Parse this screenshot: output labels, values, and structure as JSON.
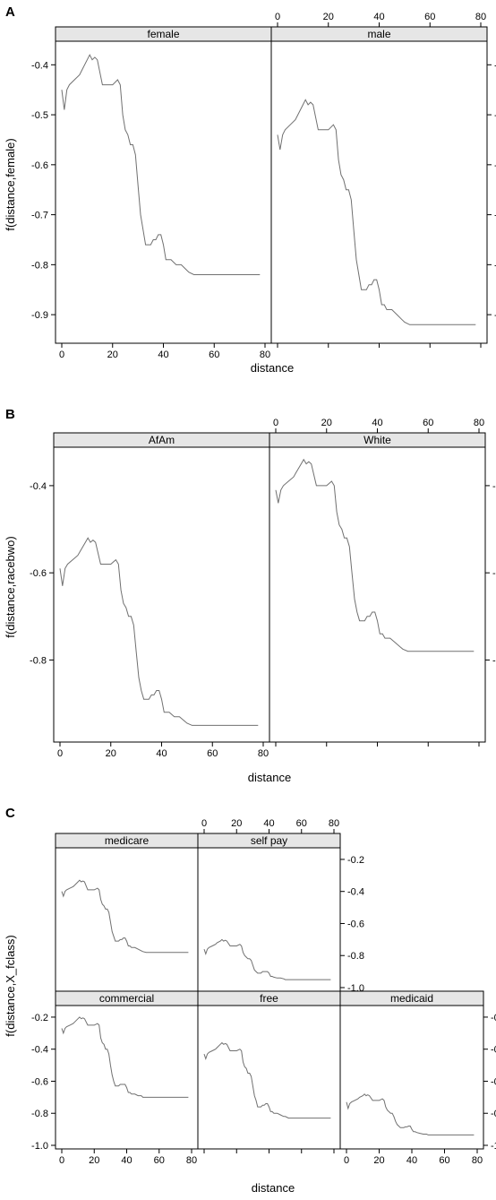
{
  "figure": {
    "background": "#ffffff",
    "strip_color": "#e6e6e6",
    "line_color": "#707070",
    "frame_color": "#000000"
  },
  "chart_data": [
    {
      "type": "line",
      "panel_label": "A",
      "xlabel": "distance",
      "ylabel": "f(distance,female)",
      "xlim": [
        0,
        80
      ],
      "ylim": [
        -0.95,
        -0.36
      ],
      "xticks": [
        0,
        20,
        40,
        60,
        80
      ],
      "yticks": [
        -0.4,
        -0.5,
        -0.6,
        -0.7,
        -0.8,
        -0.9
      ],
      "facets": [
        {
          "name": "female",
          "x": [
            0,
            1,
            2,
            3,
            5,
            7,
            8,
            10,
            11,
            12,
            13,
            14,
            16,
            18,
            20,
            22,
            23,
            24,
            25,
            26,
            27,
            28,
            29,
            30,
            31,
            32,
            33,
            34,
            35,
            36,
            37,
            38,
            39,
            40,
            41,
            42,
            43,
            45,
            47,
            49,
            50,
            52,
            55,
            60,
            70,
            78
          ],
          "y": [
            -0.45,
            -0.49,
            -0.45,
            -0.44,
            -0.43,
            -0.42,
            -0.41,
            -0.39,
            -0.38,
            -0.39,
            -0.385,
            -0.39,
            -0.44,
            -0.44,
            -0.44,
            -0.43,
            -0.44,
            -0.5,
            -0.53,
            -0.54,
            -0.56,
            -0.56,
            -0.58,
            -0.64,
            -0.7,
            -0.73,
            -0.76,
            -0.76,
            -0.76,
            -0.75,
            -0.75,
            -0.74,
            -0.74,
            -0.76,
            -0.79,
            -0.79,
            -0.79,
            -0.8,
            -0.8,
            -0.81,
            -0.815,
            -0.82,
            -0.82,
            -0.82,
            -0.82,
            -0.82
          ]
        },
        {
          "name": "male",
          "x": [
            0,
            1,
            2,
            3,
            5,
            7,
            8,
            10,
            11,
            12,
            13,
            14,
            16,
            18,
            20,
            22,
            23,
            24,
            25,
            26,
            27,
            28,
            29,
            30,
            31,
            32,
            33,
            34,
            35,
            36,
            37,
            38,
            39,
            40,
            41,
            42,
            43,
            45,
            47,
            49,
            50,
            52,
            55,
            60,
            70,
            78
          ],
          "y": [
            -0.54,
            -0.57,
            -0.54,
            -0.53,
            -0.52,
            -0.51,
            -0.5,
            -0.48,
            -0.47,
            -0.48,
            -0.475,
            -0.48,
            -0.53,
            -0.53,
            -0.53,
            -0.52,
            -0.53,
            -0.59,
            -0.62,
            -0.63,
            -0.65,
            -0.65,
            -0.67,
            -0.73,
            -0.79,
            -0.82,
            -0.85,
            -0.85,
            -0.85,
            -0.84,
            -0.84,
            -0.83,
            -0.83,
            -0.85,
            -0.88,
            -0.88,
            -0.89,
            -0.89,
            -0.9,
            -0.91,
            -0.915,
            -0.92,
            -0.92,
            -0.92,
            -0.92,
            -0.92
          ]
        }
      ]
    },
    {
      "type": "line",
      "panel_label": "B",
      "xlabel": "distance",
      "ylabel": "f(distance,racebwo)",
      "xlim": [
        0,
        80
      ],
      "ylim": [
        -0.98,
        -0.32
      ],
      "xticks": [
        0,
        20,
        40,
        60,
        80
      ],
      "yticks": [
        -0.4,
        -0.6,
        -0.8
      ],
      "facets": [
        {
          "name": "AfAm",
          "x": [
            0,
            1,
            2,
            3,
            5,
            7,
            8,
            10,
            11,
            12,
            13,
            14,
            16,
            18,
            20,
            22,
            23,
            24,
            25,
            26,
            27,
            28,
            29,
            30,
            31,
            32,
            33,
            34,
            35,
            36,
            37,
            38,
            39,
            40,
            41,
            42,
            43,
            45,
            47,
            49,
            50,
            52,
            55,
            60,
            70,
            78
          ],
          "y": [
            -0.59,
            -0.63,
            -0.59,
            -0.58,
            -0.57,
            -0.56,
            -0.55,
            -0.53,
            -0.52,
            -0.53,
            -0.525,
            -0.53,
            -0.58,
            -0.58,
            -0.58,
            -0.57,
            -0.58,
            -0.64,
            -0.67,
            -0.68,
            -0.7,
            -0.7,
            -0.72,
            -0.78,
            -0.84,
            -0.87,
            -0.89,
            -0.89,
            -0.89,
            -0.88,
            -0.88,
            -0.87,
            -0.87,
            -0.89,
            -0.92,
            -0.92,
            -0.92,
            -0.93,
            -0.93,
            -0.94,
            -0.945,
            -0.95,
            -0.95,
            -0.95,
            -0.95,
            -0.95
          ]
        },
        {
          "name": "White",
          "x": [
            0,
            1,
            2,
            3,
            5,
            7,
            8,
            10,
            11,
            12,
            13,
            14,
            16,
            18,
            20,
            22,
            23,
            24,
            25,
            26,
            27,
            28,
            29,
            30,
            31,
            32,
            33,
            34,
            35,
            36,
            37,
            38,
            39,
            40,
            41,
            42,
            43,
            45,
            47,
            49,
            50,
            52,
            55,
            60,
            70,
            78
          ],
          "y": [
            -0.41,
            -0.44,
            -0.41,
            -0.4,
            -0.39,
            -0.38,
            -0.37,
            -0.35,
            -0.34,
            -0.35,
            -0.345,
            -0.35,
            -0.4,
            -0.4,
            -0.4,
            -0.39,
            -0.4,
            -0.46,
            -0.49,
            -0.5,
            -0.52,
            -0.52,
            -0.54,
            -0.6,
            -0.66,
            -0.69,
            -0.71,
            -0.71,
            -0.71,
            -0.7,
            -0.7,
            -0.69,
            -0.69,
            -0.71,
            -0.74,
            -0.74,
            -0.75,
            -0.75,
            -0.76,
            -0.77,
            -0.775,
            -0.78,
            -0.78,
            -0.78,
            -0.78,
            -0.78
          ]
        }
      ]
    },
    {
      "type": "line",
      "panel_label": "C",
      "xlabel": "distance",
      "ylabel": "f(distance,X_fclass)",
      "xlim": [
        0,
        80
      ],
      "ylim": [
        -1.0,
        -0.15
      ],
      "xticks": [
        0,
        20,
        40,
        60,
        80
      ],
      "yticks": [
        -0.2,
        -0.4,
        -0.6,
        -0.8,
        -1.0
      ],
      "ytick_labels": [
        "-0.2",
        "-0.4",
        "-0.6",
        "-0.8",
        "-1.0"
      ],
      "facets": [
        {
          "name": "medicare",
          "x": [
            0,
            1,
            2,
            3,
            5,
            7,
            8,
            10,
            11,
            12,
            13,
            14,
            16,
            18,
            20,
            22,
            23,
            24,
            25,
            26,
            27,
            28,
            29,
            30,
            31,
            32,
            33,
            34,
            35,
            36,
            37,
            38,
            39,
            40,
            41,
            42,
            43,
            45,
            47,
            49,
            50,
            52,
            55,
            60,
            70,
            78
          ],
          "y": [
            -0.4,
            -0.43,
            -0.4,
            -0.39,
            -0.38,
            -0.37,
            -0.36,
            -0.34,
            -0.33,
            -0.34,
            -0.335,
            -0.34,
            -0.39,
            -0.39,
            -0.39,
            -0.38,
            -0.39,
            -0.45,
            -0.48,
            -0.49,
            -0.51,
            -0.51,
            -0.53,
            -0.59,
            -0.65,
            -0.68,
            -0.71,
            -0.71,
            -0.71,
            -0.7,
            -0.7,
            -0.69,
            -0.69,
            -0.71,
            -0.74,
            -0.74,
            -0.75,
            -0.75,
            -0.76,
            -0.77,
            -0.775,
            -0.78,
            -0.78,
            -0.78,
            -0.78,
            -0.78
          ]
        },
        {
          "name": "self pay",
          "x": [
            0,
            1,
            2,
            3,
            5,
            7,
            8,
            10,
            11,
            12,
            13,
            14,
            16,
            18,
            20,
            22,
            23,
            24,
            25,
            26,
            27,
            28,
            29,
            30,
            31,
            32,
            33,
            34,
            35,
            36,
            37,
            38,
            39,
            40,
            41,
            42,
            43,
            45,
            47,
            49,
            50,
            52,
            55,
            60,
            70,
            78
          ],
          "y": [
            -0.76,
            -0.79,
            -0.76,
            -0.75,
            -0.74,
            -0.73,
            -0.72,
            -0.71,
            -0.7,
            -0.71,
            -0.705,
            -0.71,
            -0.74,
            -0.74,
            -0.74,
            -0.73,
            -0.74,
            -0.78,
            -0.8,
            -0.81,
            -0.82,
            -0.82,
            -0.83,
            -0.86,
            -0.89,
            -0.9,
            -0.91,
            -0.91,
            -0.91,
            -0.9,
            -0.9,
            -0.9,
            -0.9,
            -0.91,
            -0.93,
            -0.93,
            -0.935,
            -0.94,
            -0.94,
            -0.945,
            -0.95,
            -0.95,
            -0.95,
            -0.95,
            -0.95,
            -0.95
          ]
        },
        {
          "name": "commercial",
          "x": [
            0,
            1,
            2,
            3,
            5,
            7,
            8,
            10,
            11,
            12,
            13,
            14,
            16,
            18,
            20,
            22,
            23,
            24,
            25,
            26,
            27,
            28,
            29,
            30,
            31,
            32,
            33,
            34,
            35,
            36,
            37,
            38,
            39,
            40,
            41,
            42,
            43,
            45,
            47,
            49,
            50,
            52,
            55,
            60,
            70,
            78
          ],
          "y": [
            -0.27,
            -0.3,
            -0.27,
            -0.26,
            -0.25,
            -0.24,
            -0.23,
            -0.21,
            -0.2,
            -0.21,
            -0.205,
            -0.21,
            -0.25,
            -0.25,
            -0.25,
            -0.24,
            -0.25,
            -0.33,
            -0.36,
            -0.37,
            -0.4,
            -0.4,
            -0.43,
            -0.5,
            -0.56,
            -0.6,
            -0.63,
            -0.63,
            -0.63,
            -0.62,
            -0.62,
            -0.62,
            -0.62,
            -0.64,
            -0.67,
            -0.67,
            -0.68,
            -0.68,
            -0.69,
            -0.69,
            -0.7,
            -0.7,
            -0.7,
            -0.7,
            -0.7,
            -0.7
          ]
        },
        {
          "name": "free",
          "x": [
            0,
            1,
            2,
            3,
            5,
            7,
            8,
            10,
            11,
            12,
            13,
            14,
            16,
            18,
            20,
            22,
            23,
            24,
            25,
            26,
            27,
            28,
            29,
            30,
            31,
            32,
            33,
            34,
            35,
            36,
            37,
            38,
            39,
            40,
            41,
            42,
            43,
            45,
            47,
            49,
            50,
            52,
            55,
            60,
            70,
            78
          ],
          "y": [
            -0.43,
            -0.46,
            -0.43,
            -0.42,
            -0.41,
            -0.4,
            -0.39,
            -0.37,
            -0.36,
            -0.37,
            -0.365,
            -0.37,
            -0.41,
            -0.41,
            -0.41,
            -0.4,
            -0.41,
            -0.48,
            -0.51,
            -0.52,
            -0.55,
            -0.55,
            -0.57,
            -0.63,
            -0.69,
            -0.72,
            -0.76,
            -0.76,
            -0.76,
            -0.75,
            -0.75,
            -0.74,
            -0.74,
            -0.76,
            -0.79,
            -0.79,
            -0.8,
            -0.8,
            -0.81,
            -0.82,
            -0.82,
            -0.83,
            -0.83,
            -0.83,
            -0.83,
            -0.83
          ]
        },
        {
          "name": "medicaid",
          "x": [
            0,
            1,
            2,
            3,
            5,
            7,
            8,
            10,
            11,
            12,
            13,
            14,
            16,
            18,
            20,
            22,
            23,
            24,
            25,
            26,
            27,
            28,
            29,
            30,
            31,
            32,
            33,
            34,
            35,
            36,
            37,
            38,
            39,
            40,
            41,
            42,
            43,
            45,
            47,
            49,
            50,
            52,
            55,
            60,
            70,
            78
          ],
          "y": [
            -0.73,
            -0.77,
            -0.74,
            -0.73,
            -0.72,
            -0.71,
            -0.7,
            -0.69,
            -0.68,
            -0.69,
            -0.685,
            -0.69,
            -0.72,
            -0.72,
            -0.72,
            -0.71,
            -0.72,
            -0.76,
            -0.78,
            -0.79,
            -0.8,
            -0.8,
            -0.82,
            -0.85,
            -0.87,
            -0.88,
            -0.89,
            -0.89,
            -0.89,
            -0.885,
            -0.885,
            -0.88,
            -0.88,
            -0.9,
            -0.915,
            -0.915,
            -0.92,
            -0.925,
            -0.93,
            -0.93,
            -0.935,
            -0.935,
            -0.935,
            -0.935,
            -0.935,
            -0.935
          ]
        }
      ]
    }
  ]
}
